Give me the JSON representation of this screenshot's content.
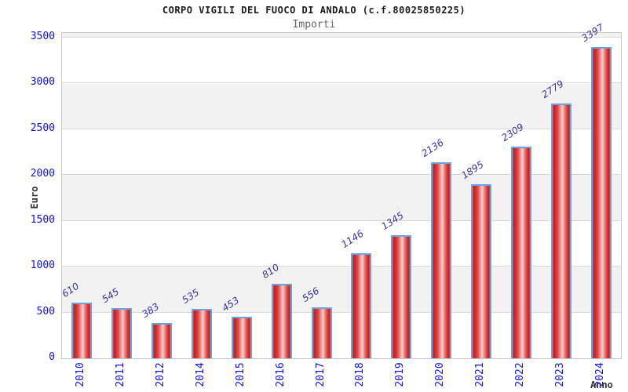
{
  "chart_data": {
    "type": "bar",
    "title": "CORPO VIGILI DEL FUOCO DI ANDALO (c.f.80025850225)",
    "subtitle": "Importi",
    "xlabel": "Anno",
    "ylabel": "Euro",
    "categories": [
      "2010",
      "2011",
      "2012",
      "2014",
      "2015",
      "2016",
      "2017",
      "2018",
      "2019",
      "2020",
      "2021",
      "2022",
      "2023",
      "2024"
    ],
    "values": [
      610,
      545,
      383,
      535,
      453,
      810,
      556,
      1146,
      1345,
      2136,
      1895,
      2309,
      2779,
      3397
    ],
    "ylim": [
      0,
      3550
    ],
    "yticks": [
      0,
      500,
      1000,
      1500,
      2000,
      2500,
      3000,
      3500
    ],
    "grid": true,
    "legend_position": "none",
    "colors": {
      "title_text": "#1a1a1a",
      "subtitle_text": "#666666",
      "axis_title_text": "#333333",
      "tick_label": "#1111dd",
      "value_label": "#3434a8",
      "bar_color_dark": "#c02020",
      "bar_color_mid": "#e04848",
      "bar_color_light": "#f8d0cc",
      "bar_border": "#6ba3dd",
      "band_white": "#ffffff",
      "band_gray": "#f2f2f2",
      "grid_line": "#d9d9d9",
      "plot_border": "#c8c8c8"
    }
  }
}
